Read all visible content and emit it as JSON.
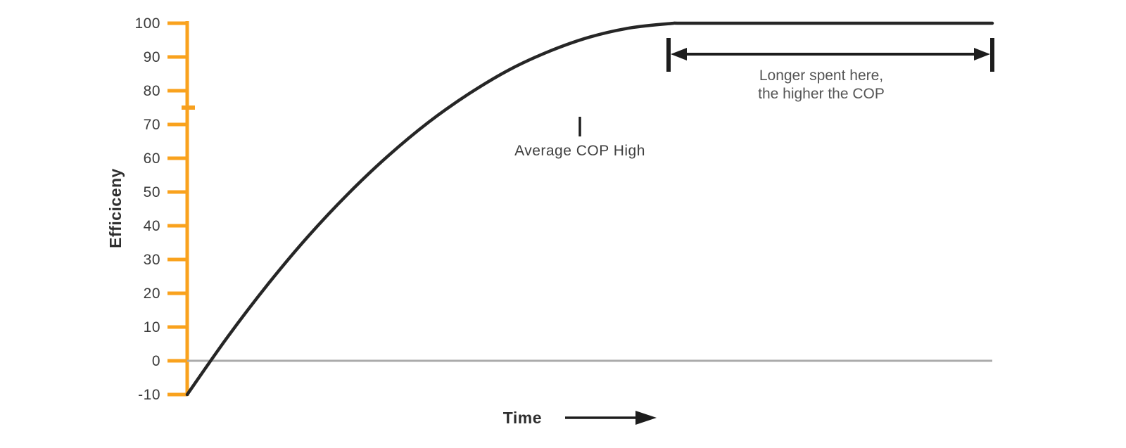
{
  "chart_data": {
    "type": "line",
    "title": "",
    "xlabel": "Time",
    "ylabel": "Efficiceny",
    "ylim": [
      -10,
      100
    ],
    "xlim_frac": [
      0,
      1
    ],
    "yticks": [
      100,
      90,
      80,
      70,
      60,
      50,
      40,
      30,
      20,
      10,
      0,
      -10
    ],
    "grid": false,
    "legend": "none",
    "axis_color": "#F9A21D",
    "series": [
      {
        "name": "efficiency_curve",
        "type": "curve",
        "color": "#262626",
        "x": [
          0,
          0.05,
          0.1,
          0.15,
          0.2,
          0.25,
          0.3,
          0.35,
          0.4,
          0.45,
          0.5,
          0.55,
          0.6,
          0.62,
          0.75,
          0.88,
          1.0
        ],
        "values": [
          -10,
          7.0,
          22.6,
          36.8,
          49.5,
          60.8,
          70.7,
          79.1,
          86.2,
          91.7,
          95.9,
          98.6,
          99.9,
          100,
          100,
          100,
          100
        ]
      },
      {
        "name": "average_cop_high_line",
        "type": "hline",
        "value": 75,
        "style": "dashed",
        "gradient": [
          "#F7A01F",
          "#EE4F43",
          "#EC0E62"
        ]
      },
      {
        "name": "zero_baseline",
        "type": "hline",
        "value": 0,
        "style": "solid",
        "color": "#ABABAB"
      },
      {
        "name": "time_axis_baseline",
        "type": "hline",
        "value": -10,
        "style": "solid",
        "gradient": [
          "#F7A01F",
          "#EE4F43",
          "#EC0E62"
        ]
      }
    ],
    "annotations": [
      {
        "name": "cop_range_arrow",
        "type": "double_headed_arrow",
        "text_lines": [
          "Longer spent here,",
          "the higher the COP"
        ],
        "span_values": [
          "curve reaches 100",
          "end of chart"
        ]
      },
      {
        "name": "avg_cop_callout",
        "type": "callout",
        "text": "Average COP High",
        "points_to_value": 75
      }
    ]
  }
}
